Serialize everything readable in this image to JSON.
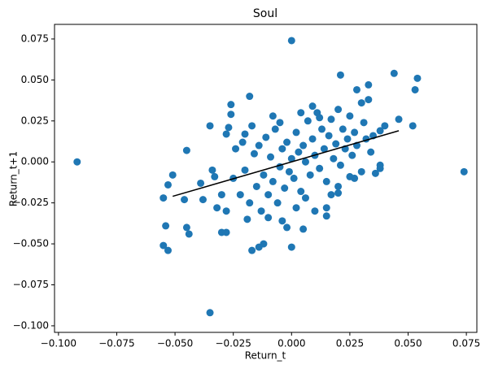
{
  "chart_data": {
    "type": "scatter",
    "title": "Soul",
    "x_label": "Return_t",
    "y_label": "Return_t+1",
    "color": "#1f77b4",
    "x": [
      -0.092,
      0.074,
      0.0,
      -0.035,
      0.044,
      0.054,
      0.021,
      -0.055,
      -0.053,
      -0.054,
      -0.055,
      -0.053,
      -0.051,
      -0.046,
      -0.045,
      -0.044,
      -0.045,
      -0.038,
      -0.039,
      -0.035,
      -0.034,
      -0.033,
      -0.03,
      -0.028,
      -0.028,
      -0.027,
      -0.026,
      -0.026,
      -0.02,
      -0.018,
      -0.017,
      -0.014,
      -0.012,
      0.0,
      0.005,
      -0.004,
      -0.01,
      0.01,
      0.015,
      0.015,
      0.028,
      0.033,
      0.033,
      0.03,
      0.053,
      0.052,
      0.046,
      0.04,
      0.038,
      0.038,
      0.038,
      0.036,
      0.025,
      0.02,
      0.02,
      -0.025,
      -0.022,
      -0.02,
      -0.018,
      -0.016,
      -0.015,
      -0.014,
      -0.013,
      -0.012,
      -0.011,
      -0.01,
      -0.009,
      -0.008,
      -0.007,
      -0.006,
      -0.005,
      -0.004,
      -0.003,
      -0.002,
      -0.001,
      0.0,
      0.001,
      0.002,
      0.003,
      0.004,
      0.005,
      0.006,
      0.007,
      0.008,
      0.009,
      0.01,
      0.011,
      0.012,
      0.013,
      0.014,
      0.015,
      0.016,
      0.017,
      0.018,
      0.019,
      0.02,
      0.021,
      0.022,
      0.023,
      0.024,
      0.025,
      0.026,
      0.027,
      0.028,
      0.03,
      0.031,
      0.032,
      0.034,
      0.035,
      -0.028,
      -0.024,
      -0.021,
      -0.019,
      -0.017,
      -0.008,
      -0.005,
      0.002,
      0.006,
      0.009,
      0.012,
      -0.03,
      -0.032,
      0.017,
      0.027,
      0.004,
      -0.002
    ],
    "y": [
      0.0,
      -0.006,
      0.074,
      -0.092,
      0.054,
      0.051,
      0.053,
      -0.051,
      -0.054,
      -0.039,
      -0.022,
      -0.014,
      -0.008,
      -0.023,
      -0.04,
      -0.044,
      0.007,
      -0.023,
      -0.013,
      0.022,
      -0.005,
      -0.009,
      -0.043,
      -0.043,
      0.017,
      0.021,
      0.029,
      0.035,
      0.017,
      0.04,
      -0.054,
      -0.052,
      -0.05,
      -0.052,
      -0.041,
      -0.036,
      -0.034,
      -0.03,
      -0.033,
      -0.028,
      0.044,
      0.047,
      0.038,
      0.036,
      0.044,
      0.022,
      0.026,
      0.022,
      0.019,
      -0.004,
      -0.002,
      -0.007,
      -0.009,
      -0.015,
      -0.019,
      -0.01,
      -0.02,
      -0.005,
      -0.025,
      0.005,
      -0.015,
      0.01,
      -0.03,
      -0.008,
      0.015,
      -0.02,
      0.003,
      -0.012,
      0.02,
      -0.025,
      -0.003,
      0.008,
      -0.016,
      0.012,
      -0.006,
      0.002,
      -0.01,
      0.018,
      0.006,
      -0.018,
      0.01,
      0.0,
      0.025,
      -0.008,
      0.014,
      0.004,
      0.03,
      -0.004,
      0.02,
      0.008,
      -0.012,
      0.016,
      0.026,
      0.002,
      0.011,
      0.032,
      -0.002,
      0.02,
      0.008,
      0.014,
      0.028,
      0.004,
      0.018,
      0.01,
      -0.006,
      0.024,
      0.014,
      0.006,
      0.016,
      -0.03,
      0.008,
      0.012,
      -0.035,
      0.022,
      0.028,
      0.024,
      -0.028,
      -0.022,
      0.034,
      0.027,
      -0.02,
      -0.028,
      -0.02,
      -0.01,
      0.03,
      -0.04
    ],
    "fit_line": {
      "color": "#000000",
      "x": [
        -0.051,
        0.046
      ],
      "y": [
        -0.021,
        0.019
      ]
    },
    "xlim": [
      -0.1017,
      0.0795
    ],
    "ylim": [
      -0.104,
      0.0839
    ],
    "xticks": [
      {
        "value": -0.1,
        "label": "−0.100"
      },
      {
        "value": -0.075,
        "label": "−0.075"
      },
      {
        "value": -0.05,
        "label": "−0.050"
      },
      {
        "value": -0.025,
        "label": "−0.025"
      },
      {
        "value": 0,
        "label": "0.000"
      },
      0.025,
      {
        "value": 0.05,
        "label": "0.050"
      },
      0.075
    ],
    "yticks": [
      {
        "value": -0.1,
        "label": "−0.100"
      },
      {
        "value": -0.075,
        "label": "−0.075"
      },
      {
        "value": -0.05,
        "label": "−0.050"
      },
      {
        "value": -0.025,
        "label": "−0.025"
      },
      {
        "value": 0,
        "label": "0.000"
      },
      0.025,
      {
        "value": 0.05,
        "label": "0.050"
      },
      0.075
    ]
  }
}
